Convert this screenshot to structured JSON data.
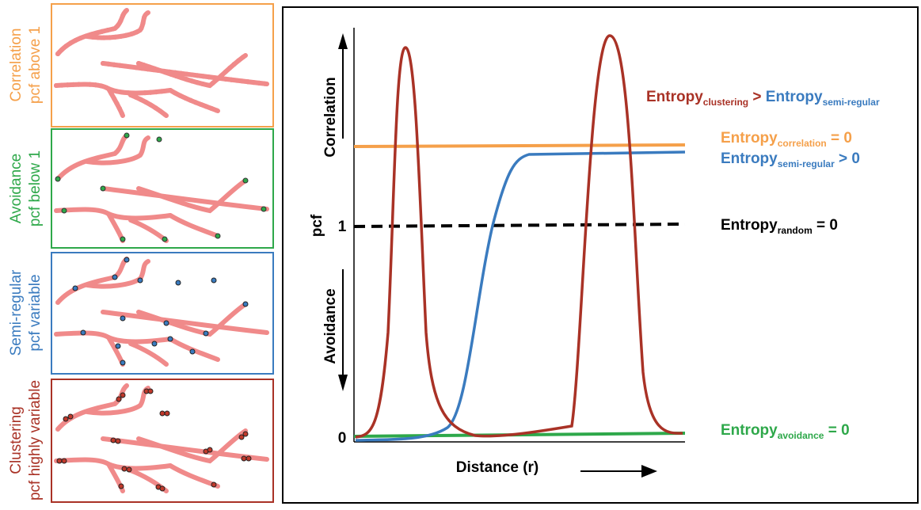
{
  "panels": [
    {
      "title": "Correlation",
      "subtitle": "pcf above 1"
    },
    {
      "title": "Avoidance",
      "subtitle": "pcf below 1"
    },
    {
      "title": "Semi-regular",
      "subtitle": "pcf variable"
    },
    {
      "title": "Clustering",
      "subtitle": "pcf highly variable"
    }
  ],
  "plot": {
    "y_label": "pcf",
    "x_label": "Distance (r)",
    "y_tick_one": "1",
    "y_tick_zero": "0",
    "up_label": "Correlation",
    "down_label": "Avoidance",
    "compare": {
      "word": "Entropy",
      "sub": "clustering",
      "op": " > ",
      "word2": "Entropy",
      "sub2": "semi-regular"
    },
    "correlation": {
      "word": "Entropy",
      "sub": "correlation",
      "rest": " = 0"
    },
    "semi_regular": {
      "word": "Entropy",
      "sub": "semi-regular",
      "rest": " > 0"
    },
    "random": {
      "word": "Entropy",
      "sub": "random",
      "rest": " = 0"
    },
    "avoidance": {
      "word": "Entropy",
      "sub": "avoidance",
      "rest": " = 0"
    }
  }
}
